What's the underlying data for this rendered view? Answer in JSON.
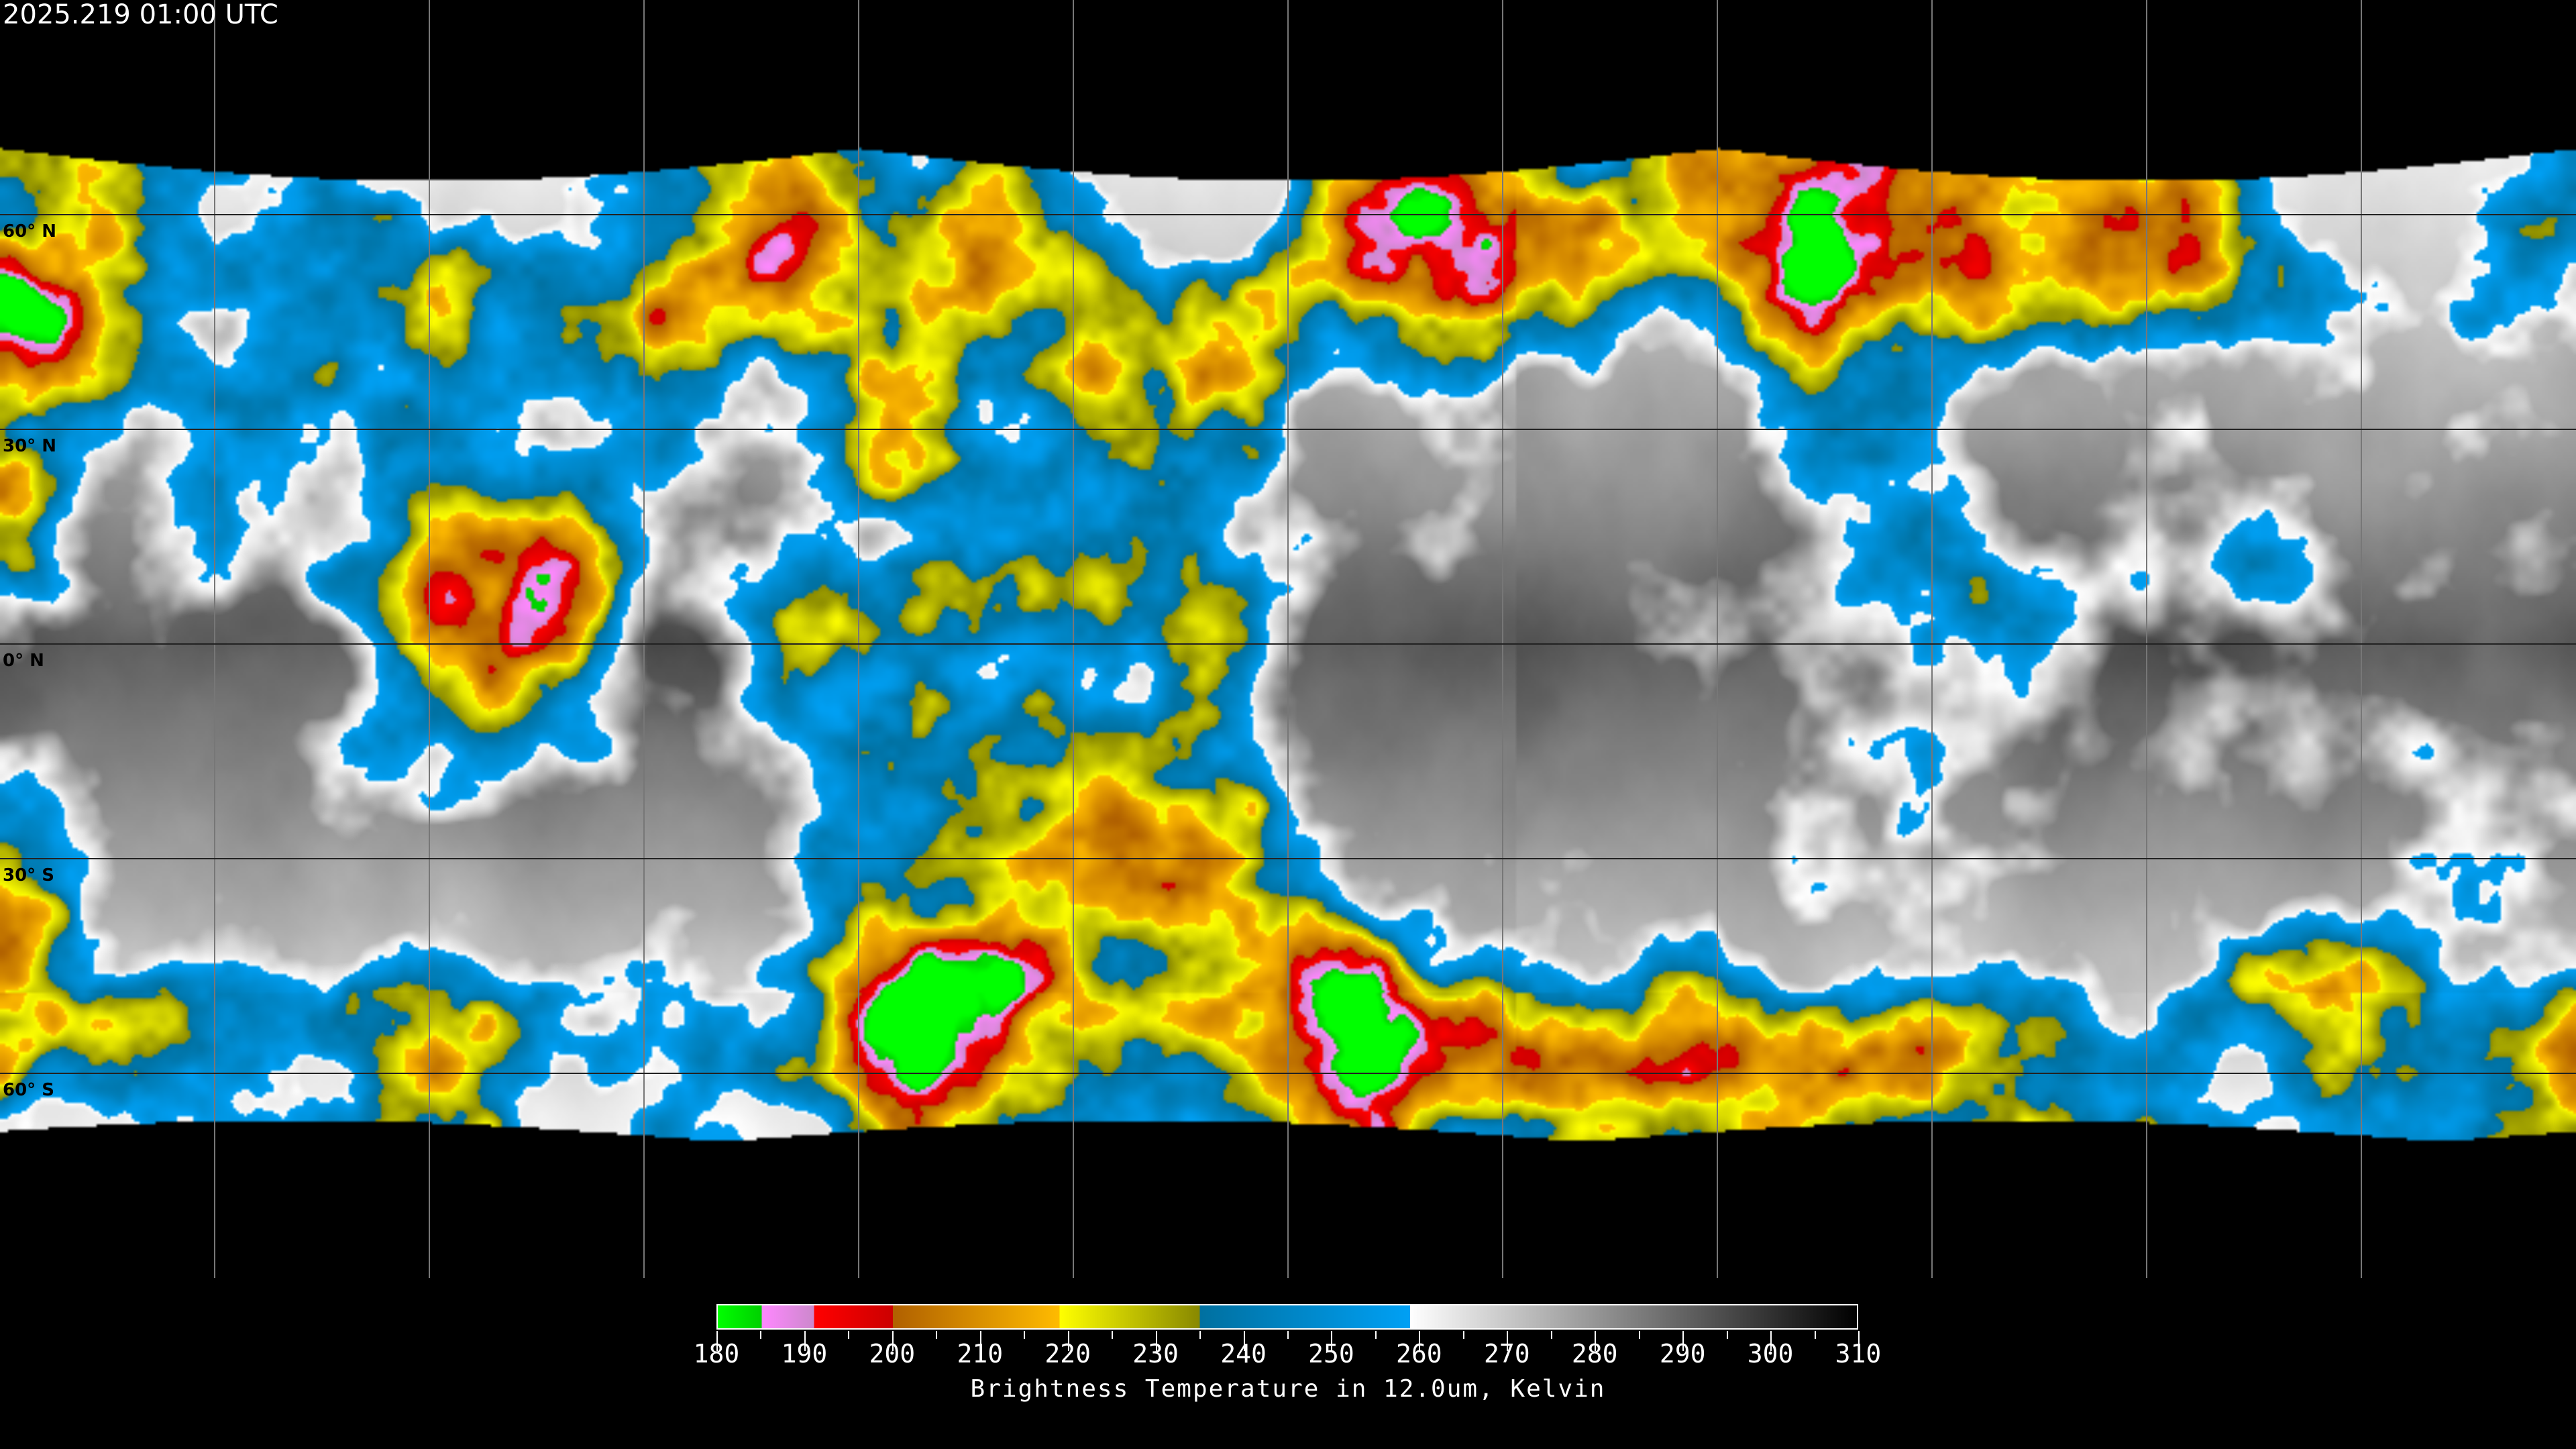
{
  "title": "2025.219 01:00 UTC",
  "latitude_labels": [
    "60° N",
    "30° N",
    "0° N",
    "30° S",
    "60° S"
  ],
  "latitudes": [
    60,
    30,
    0,
    -30,
    -60
  ],
  "grid_spacing_degrees": 30,
  "colorbar": {
    "title": "Brightness Temperature in 12.0um, Kelvin",
    "min": 180,
    "max": 310,
    "tick_labels": [
      "180",
      "190",
      "200",
      "210",
      "220",
      "230",
      "240",
      "250",
      "260",
      "270",
      "280",
      "290",
      "300",
      "310"
    ],
    "segments": [
      {
        "from": 180,
        "to": 185,
        "colors": [
          "#00ff00",
          "#00d000"
        ]
      },
      {
        "from": 185,
        "to": 191,
        "colors": [
          "#ff88ff",
          "#cc88cc"
        ]
      },
      {
        "from": 191,
        "to": 200,
        "colors": [
          "#ff0000",
          "#cc0000"
        ]
      },
      {
        "from": 200,
        "to": 219,
        "colors": [
          "#b06000",
          "#ffbb00"
        ]
      },
      {
        "from": 219,
        "to": 235,
        "colors": [
          "#ffff00",
          "#888800"
        ]
      },
      {
        "from": 235,
        "to": 259,
        "colors": [
          "#0070a0",
          "#00a0f4"
        ]
      },
      {
        "from": 259,
        "to": 310,
        "colors": [
          "#ffffff",
          "#000000"
        ]
      }
    ]
  }
}
